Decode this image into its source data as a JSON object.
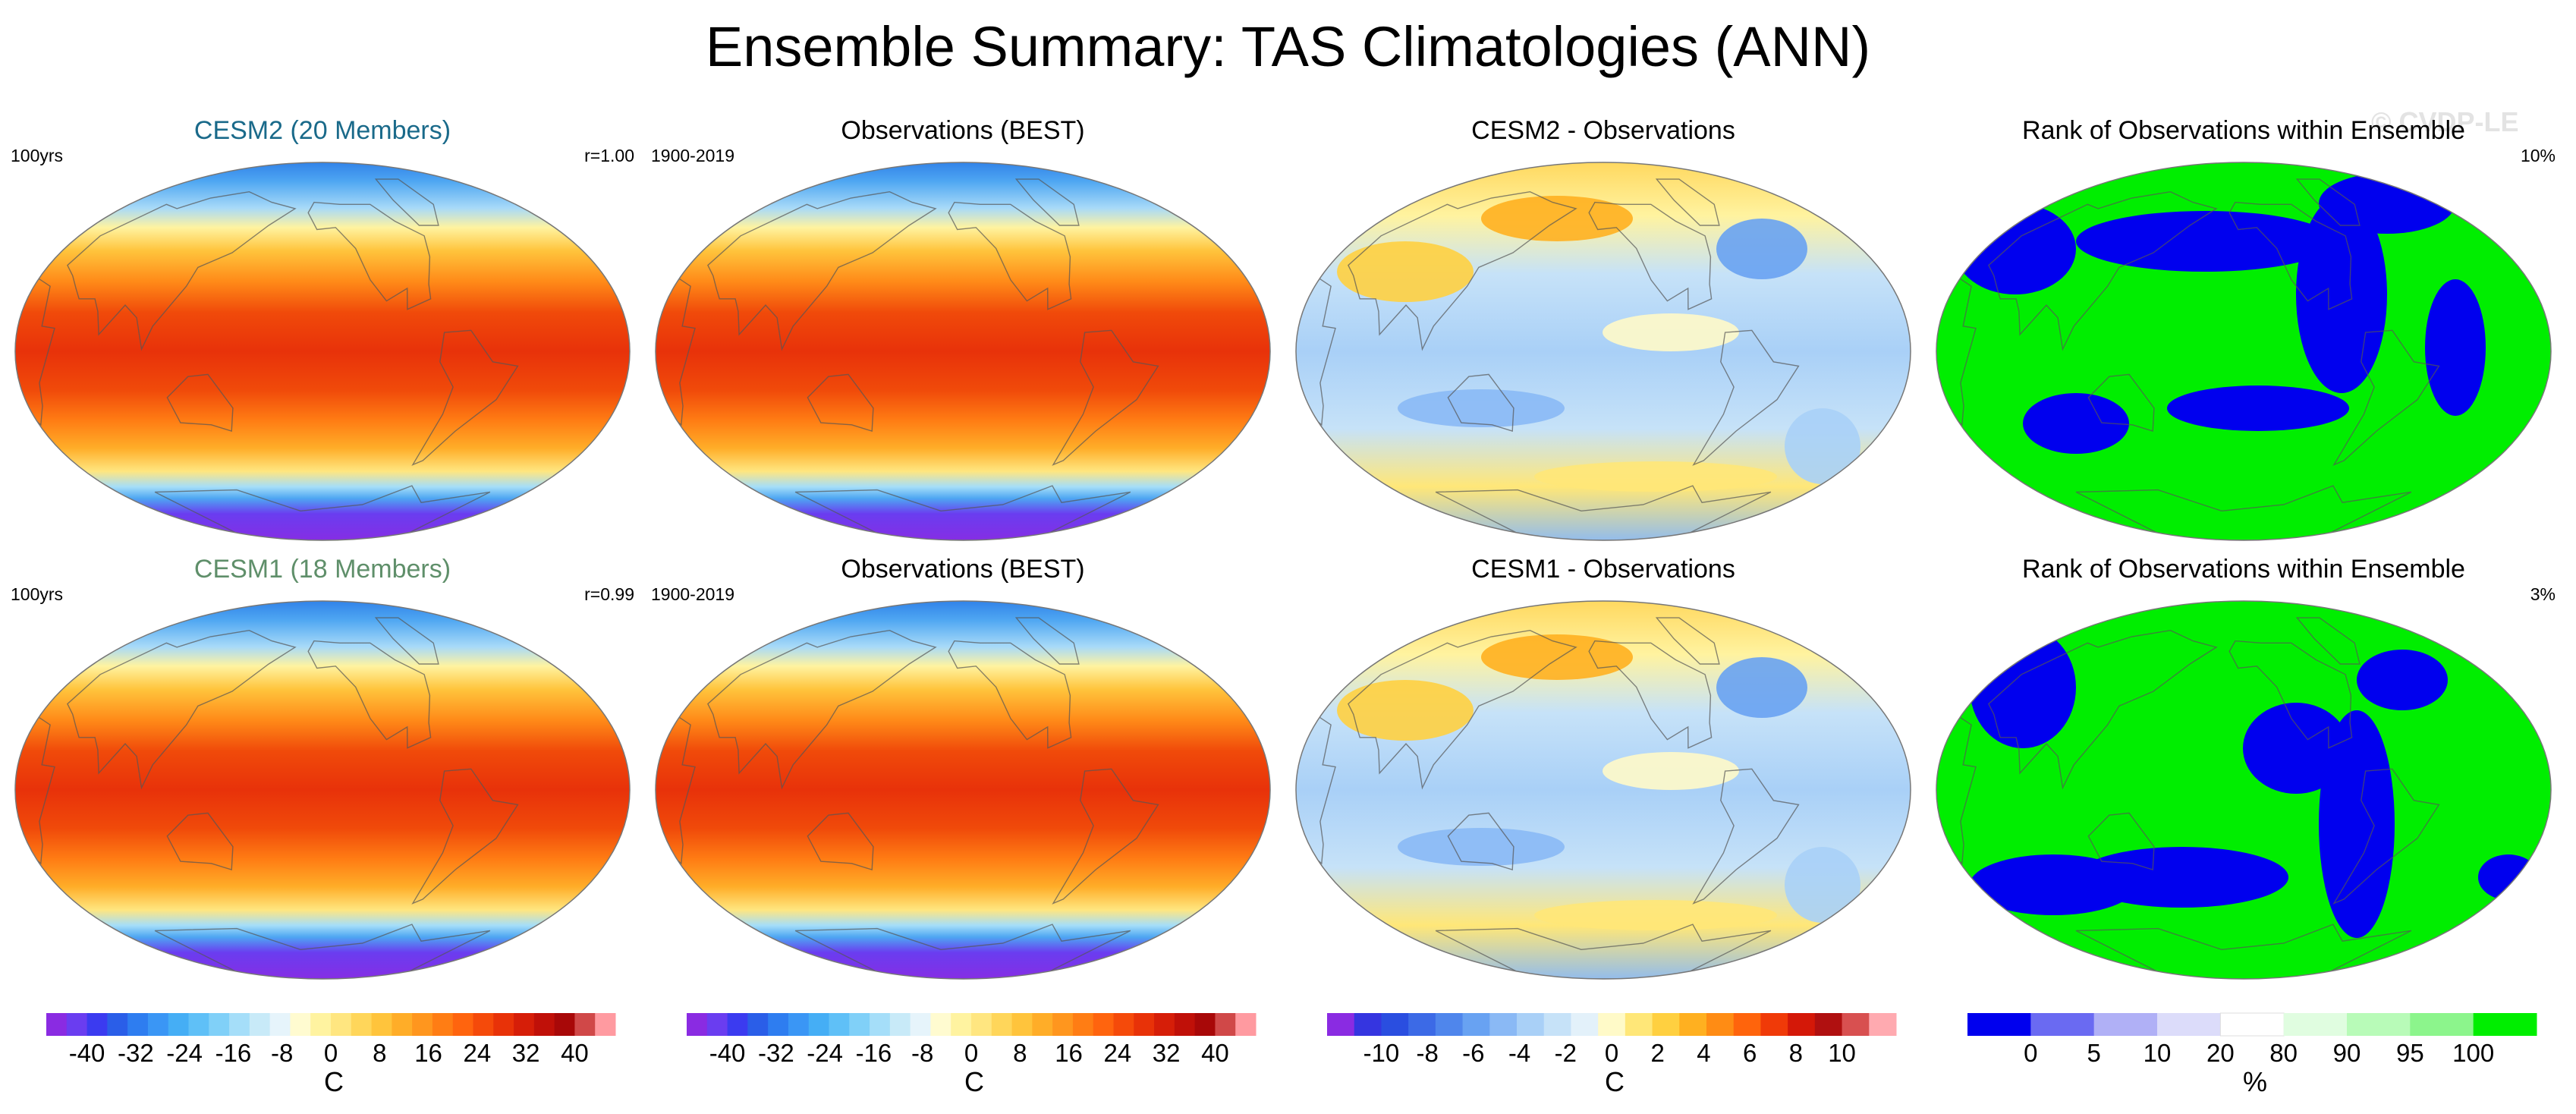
{
  "title": "Ensemble Summary: TAS Climatologies (ANN)",
  "watermark": "© CVDP-LE",
  "rows": [
    {
      "panels": [
        {
          "title": "CESM2 (20 Members)",
          "title_color": "#1a6a8a",
          "left_label": "100yrs",
          "right_label": "r=1.00",
          "kind": "climatology"
        },
        {
          "title": "Observations (BEST)",
          "title_color": "#000000",
          "left_label": "1900-2019",
          "right_label": "",
          "kind": "climatology"
        },
        {
          "title": "CESM2 - Observations",
          "title_color": "#000000",
          "left_label": "",
          "right_label": "",
          "kind": "difference"
        },
        {
          "title": "Rank of Observations within Ensemble",
          "title_color": "#000000",
          "left_label": "",
          "right_label": "10%",
          "kind": "rank"
        }
      ]
    },
    {
      "panels": [
        {
          "title": "CESM1 (18 Members)",
          "title_color": "#5f8f6a",
          "left_label": "100yrs",
          "right_label": "r=0.99",
          "kind": "climatology"
        },
        {
          "title": "Observations (BEST)",
          "title_color": "#000000",
          "left_label": "1900-2019",
          "right_label": "",
          "kind": "climatology"
        },
        {
          "title": "CESM1 - Observations",
          "title_color": "#000000",
          "left_label": "",
          "right_label": "",
          "kind": "difference"
        },
        {
          "title": "Rank of Observations within Ensemble",
          "title_color": "#000000",
          "left_label": "",
          "right_label": "3%",
          "kind": "rank"
        }
      ]
    }
  ],
  "colorbars": [
    {
      "unit": "C",
      "ticks": [
        "-40",
        "-32",
        "-24",
        "-16",
        "-8",
        "0",
        "8",
        "16",
        "24",
        "32",
        "40"
      ],
      "colors": [
        "#8a2be2",
        "#6a3df0",
        "#3b3bf0",
        "#2a5ee8",
        "#2e7df0",
        "#3a96f5",
        "#45aef5",
        "#5fc0f7",
        "#80d0f8",
        "#a5def9",
        "#c8eaf8",
        "#e6f4fb",
        "#fffbd0",
        "#fff3a0",
        "#ffe680",
        "#ffd65a",
        "#ffc43c",
        "#ffad28",
        "#ff961e",
        "#ff7d14",
        "#ff640e",
        "#f54a0a",
        "#e83208",
        "#d61e08",
        "#c01008",
        "#a80808",
        "#d04848",
        "#ff9aa0"
      ]
    },
    {
      "unit": "C",
      "ticks": [
        "-40",
        "-32",
        "-24",
        "-16",
        "-8",
        "0",
        "8",
        "16",
        "24",
        "32",
        "40"
      ],
      "colors": [
        "#8a2be2",
        "#6a3df0",
        "#3b3bf0",
        "#2a5ee8",
        "#2e7df0",
        "#3a96f5",
        "#45aef5",
        "#5fc0f7",
        "#80d0f8",
        "#a5def9",
        "#c8eaf8",
        "#e6f4fb",
        "#fffbd0",
        "#fff3a0",
        "#ffe680",
        "#ffd65a",
        "#ffc43c",
        "#ffad28",
        "#ff961e",
        "#ff7d14",
        "#ff640e",
        "#f54a0a",
        "#e83208",
        "#d61e08",
        "#c01008",
        "#a80808",
        "#d04848",
        "#ff9aa0"
      ]
    },
    {
      "unit": "C",
      "ticks": [
        "-10",
        "-8",
        "-6",
        "-4",
        "-2",
        "0",
        "2",
        "4",
        "6",
        "8",
        "10"
      ],
      "colors": [
        "#8a2be2",
        "#3535e0",
        "#2a4ee0",
        "#3c6ae6",
        "#4f86ec",
        "#68a2f2",
        "#8ab9f5",
        "#a9d0f7",
        "#c6e2f8",
        "#e3f1fa",
        "#fffac8",
        "#ffe778",
        "#ffd040",
        "#ffb020",
        "#ff8c14",
        "#ff640c",
        "#f03a08",
        "#d41808",
        "#b01010",
        "#d85050",
        "#ffaab0"
      ]
    },
    {
      "unit": "%",
      "ticks": [
        "0",
        "5",
        "10",
        "20",
        "80",
        "90",
        "95",
        "100"
      ],
      "colors": [
        "#0000ee",
        "#6a6af2",
        "#b0b0f6",
        "#dcdcfa",
        "#ffffff",
        "#e0fde0",
        "#b8fbb8",
        "#8cf58c",
        "#00ee00"
      ]
    }
  ],
  "chart_data": {
    "type": "heatmap",
    "title": "Ensemble Summary: TAS Climatologies (ANN)",
    "rows": [
      {
        "model": "CESM2 (20 Members)",
        "period": "100yrs",
        "pattern_correlation": 1.0,
        "observations": "Observations (BEST)",
        "observations_period": "1900-2019",
        "difference": "CESM2 - Observations",
        "rank_panel": "Rank of Observations within Ensemble",
        "rank_area_percent": 10
      },
      {
        "model": "CESM1 (18 Members)",
        "period": "100yrs",
        "pattern_correlation": 0.99,
        "observations": "Observations (BEST)",
        "observations_period": "1900-2019",
        "difference": "CESM1 - Observations",
        "rank_panel": "Rank of Observations within Ensemble",
        "rank_area_percent": 3
      }
    ],
    "colorbars": [
      {
        "panels": "climatology",
        "range": [
          -40,
          40
        ],
        "step": 8,
        "unit": "C"
      },
      {
        "panels": "difference",
        "range": [
          -10,
          10
        ],
        "step": 2,
        "unit": "C"
      },
      {
        "panels": "rank",
        "levels": [
          0,
          5,
          10,
          20,
          80,
          90,
          95,
          100
        ],
        "unit": "%"
      }
    ]
  }
}
